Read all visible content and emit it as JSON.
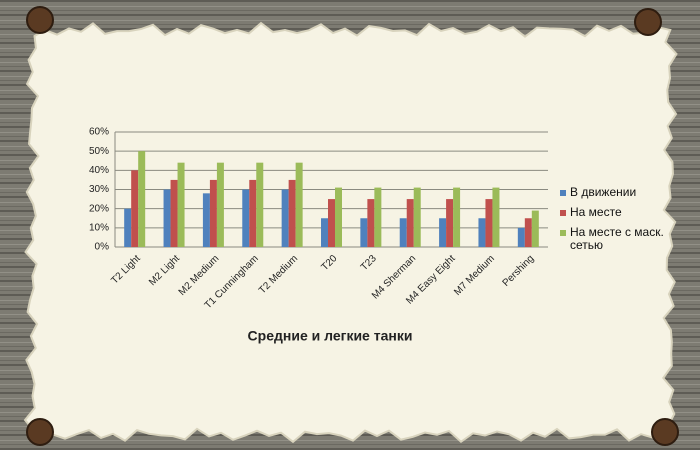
{
  "chart_data": {
    "type": "bar",
    "title": "Средние и легкие танки",
    "categories": [
      "T2 Light",
      "M2 Light",
      "M2 Medium",
      "T1 Cunningham",
      "T2 Medium",
      "T20",
      "T23",
      "M4 Sherman",
      "M4 Easy Eight",
      "M7 Medium",
      "Pershing"
    ],
    "series": [
      {
        "name": "В движении",
        "color": "#4f81bd",
        "values": [
          20,
          30,
          28,
          30,
          30,
          15,
          15,
          15,
          15,
          15,
          10
        ]
      },
      {
        "name": "На месте",
        "color": "#c0504d",
        "values": [
          40,
          35,
          35,
          35,
          35,
          25,
          25,
          25,
          25,
          25,
          15
        ]
      },
      {
        "name": "На месте с маск. сетью",
        "color": "#9bbb59",
        "values": [
          50,
          44,
          44,
          44,
          44,
          31,
          31,
          31,
          31,
          31,
          19
        ]
      }
    ],
    "ylim": [
      0,
      60
    ],
    "yticks": [
      {
        "value": 0,
        "label": "0%"
      },
      {
        "value": 10,
        "label": "10%"
      },
      {
        "value": 20,
        "label": "20%"
      },
      {
        "value": 30,
        "label": "30%"
      },
      {
        "value": 40,
        "label": "40%"
      },
      {
        "value": 50,
        "label": "50%"
      },
      {
        "value": 60,
        "label": "60%"
      }
    ],
    "grid": true,
    "legend": "right"
  }
}
